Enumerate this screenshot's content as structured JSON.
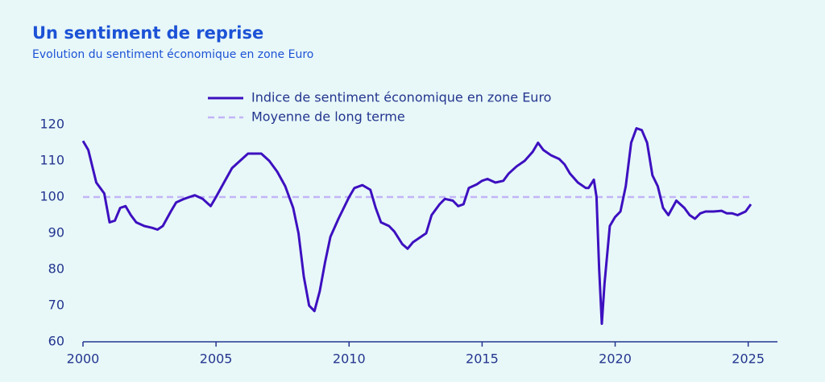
{
  "chart_data": {
    "type": "line",
    "title": "Un sentiment de reprise",
    "subtitle": "Evolution du sentiment économique en zone Euro",
    "x": [
      2000.0,
      2000.2,
      2000.5,
      2000.8,
      2001.0,
      2001.2,
      2001.4,
      2001.6,
      2001.8,
      2002.0,
      2002.3,
      2002.6,
      2002.8,
      2003.0,
      2003.3,
      2003.5,
      2003.8,
      2004.0,
      2004.2,
      2004.5,
      2004.8,
      2005.0,
      2005.3,
      2005.6,
      2005.9,
      2006.2,
      2006.5,
      2006.7,
      2007.0,
      2007.3,
      2007.6,
      2007.9,
      2008.1,
      2008.3,
      2008.5,
      2008.7,
      2008.9,
      2009.1,
      2009.3,
      2009.6,
      2009.8,
      2010.0,
      2010.2,
      2010.5,
      2010.8,
      2011.0,
      2011.2,
      2011.5,
      2011.7,
      2012.0,
      2012.2,
      2012.4,
      2012.6,
      2012.9,
      2013.1,
      2013.4,
      2013.6,
      2013.9,
      2014.1,
      2014.3,
      2014.5,
      2014.8,
      2015.0,
      2015.2,
      2015.5,
      2015.8,
      2016.0,
      2016.3,
      2016.6,
      2016.9,
      2017.1,
      2017.3,
      2017.6,
      2017.9,
      2018.1,
      2018.3,
      2018.6,
      2018.9,
      2019.0,
      2019.2,
      2019.3,
      2019.4,
      2019.5,
      2019.6,
      2019.8,
      2020.0,
      2020.2,
      2020.4,
      2020.6,
      2020.8,
      2021.0,
      2021.2,
      2021.4,
      2021.6,
      2021.8,
      2022.0,
      2022.3,
      2022.6,
      2022.8,
      2023.0,
      2023.2,
      2023.4,
      2023.7,
      2024.0,
      2024.2,
      2024.4,
      2024.6,
      2024.9,
      2025.1
    ],
    "series": [
      {
        "name": "Indice de sentiment économique en zone Euro",
        "color": "#3d10c0",
        "values": [
          115.5,
          113,
          104,
          101,
          93,
          93.5,
          97,
          97.5,
          95,
          93,
          92,
          91.5,
          91,
          92,
          96,
          98.5,
          99.5,
          100,
          100.5,
          99.5,
          97.5,
          100,
          104,
          108,
          110,
          112,
          112,
          112,
          110,
          107,
          103,
          97,
          90,
          78,
          70,
          68.5,
          74,
          82,
          89,
          94,
          97,
          100,
          102.5,
          103.3,
          102,
          97,
          93,
          92,
          90.5,
          87,
          85.7,
          87.5,
          88.5,
          90,
          95,
          98,
          99.5,
          99,
          97.5,
          98,
          102.5,
          103.5,
          104.5,
          105,
          104,
          104.5,
          106.5,
          108.5,
          110,
          112.5,
          115,
          113,
          111.5,
          110.5,
          109,
          106.5,
          104,
          102.5,
          102.5,
          104.8,
          100,
          80,
          65,
          76,
          92,
          94.5,
          96,
          103,
          115,
          119,
          118.5,
          115,
          106,
          103,
          97,
          95,
          99,
          97,
          95,
          94,
          95.5,
          96,
          96,
          96.2,
          95.5,
          95.5,
          95,
          96,
          98
        ]
      }
    ],
    "reference_lines": [
      {
        "name": "Moyenne de long terme",
        "value": 100,
        "color": "#c2b4f7",
        "style": "dashed"
      }
    ],
    "xlim": [
      2000,
      2026.1
    ],
    "xticks": [
      2000,
      2005,
      2010,
      2015,
      2020,
      2025
    ],
    "ylim": [
      60,
      120
    ],
    "yticks": [
      60,
      70,
      80,
      90,
      100,
      110,
      120
    ]
  }
}
